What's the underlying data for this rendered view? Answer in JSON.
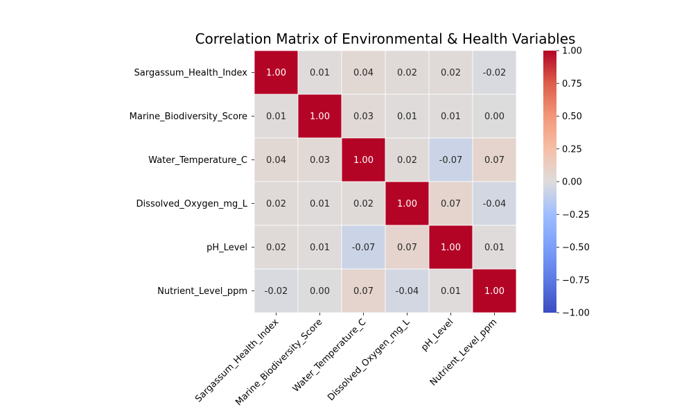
{
  "chart_data": {
    "type": "heatmap",
    "title": "Correlation Matrix of Environmental & Health Variables",
    "variables": [
      "Sargassum_Health_Index",
      "Marine_Biodiversity_Score",
      "Water_Temperature_C",
      "Dissolved_Oxygen_mg_L",
      "pH_Level",
      "Nutrient_Level_ppm"
    ],
    "matrix": [
      [
        1.0,
        0.01,
        0.04,
        0.02,
        0.02,
        -0.02
      ],
      [
        0.01,
        1.0,
        0.03,
        0.01,
        0.01,
        0.0
      ],
      [
        0.04,
        0.03,
        1.0,
        0.02,
        -0.07,
        0.07
      ],
      [
        0.02,
        0.01,
        0.02,
        1.0,
        0.07,
        -0.04
      ],
      [
        0.02,
        0.01,
        -0.07,
        0.07,
        1.0,
        0.01
      ],
      [
        -0.02,
        0.0,
        0.07,
        -0.04,
        0.01,
        1.0
      ]
    ],
    "value_labels": [
      [
        "1.00",
        "0.01",
        "0.04",
        "0.02",
        "0.02",
        "-0.02"
      ],
      [
        "0.01",
        "1.00",
        "0.03",
        "0.01",
        "0.01",
        "0.00"
      ],
      [
        "0.04",
        "0.03",
        "1.00",
        "0.02",
        "-0.07",
        "0.07"
      ],
      [
        "0.02",
        "0.01",
        "0.02",
        "1.00",
        "0.07",
        "-0.04"
      ],
      [
        "0.02",
        "0.01",
        "-0.07",
        "0.07",
        "1.00",
        "0.01"
      ],
      [
        "-0.02",
        "0.00",
        "0.07",
        "-0.04",
        "0.01",
        "1.00"
      ]
    ],
    "colormap": "coolwarm",
    "vmin": -1.0,
    "vmax": 1.0,
    "colorbar_ticks": [
      "1.00",
      "0.75",
      "0.50",
      "0.25",
      "0.00",
      "−0.25",
      "−0.50",
      "−0.75",
      "−1.00"
    ],
    "colorbar_tick_values": [
      1.0,
      0.75,
      0.5,
      0.25,
      0.0,
      -0.25,
      -0.5,
      -0.75,
      -1.0
    ],
    "grid": "white cell borders",
    "legend": "colorbar right"
  }
}
